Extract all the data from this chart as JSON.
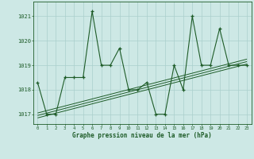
{
  "xlabel": "Graphe pression niveau de la mer (hPa)",
  "hours": [
    0,
    1,
    2,
    3,
    4,
    5,
    6,
    7,
    8,
    9,
    10,
    11,
    12,
    13,
    14,
    15,
    16,
    17,
    18,
    19,
    20,
    21,
    22,
    23
  ],
  "pressure": [
    1018.3,
    1017.0,
    1017.0,
    1018.5,
    1018.5,
    1018.5,
    1021.2,
    1019.0,
    1019.0,
    1019.7,
    1018.0,
    1018.0,
    1018.3,
    1017.0,
    1017.0,
    1019.0,
    1018.0,
    1021.0,
    1019.0,
    1019.0,
    1020.5,
    1019.0,
    1019.0,
    1019.0
  ],
  "trend_lines": [
    [
      1016.85,
      1019.05
    ],
    [
      1016.95,
      1019.15
    ],
    [
      1017.05,
      1019.25
    ]
  ],
  "bg_color": "#cde8e5",
  "grid_color": "#aacfcc",
  "line_color": "#1e5c28",
  "ylim_min": 1016.6,
  "ylim_max": 1021.6,
  "yticks": [
    1017,
    1018,
    1019,
    1020,
    1021
  ],
  "xlim_min": -0.5,
  "xlim_max": 23.5
}
